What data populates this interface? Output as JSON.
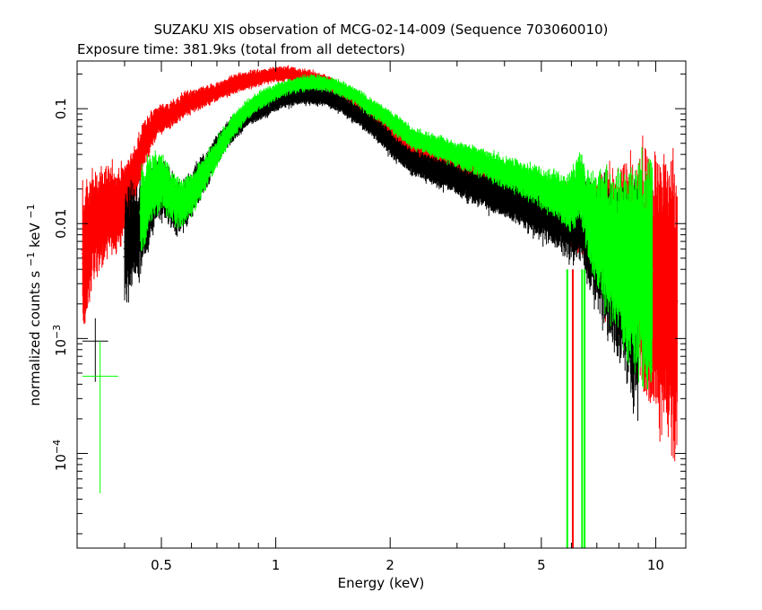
{
  "chart_data": {
    "type": "scatter",
    "title": "SUZAKU XIS observation of MCG-02-14-009 (Sequence 703060010)",
    "subtitle": "Exposure time: 381.9ks (total from all detectors)",
    "xlabel": "Energy (keV)",
    "ylabel_main": "normalized counts s",
    "ylabel_sup1": "−1",
    "ylabel_mid": " keV",
    "ylabel_sup2": "−1",
    "xscale": "log",
    "yscale": "log",
    "xlim": [
      0.3,
      12.0
    ],
    "ylim": [
      1.5e-05,
      0.26
    ],
    "x_ticks": [
      {
        "value": 0.5,
        "label": "0.5"
      },
      {
        "value": 1,
        "label": "1"
      },
      {
        "value": 2,
        "label": "2"
      },
      {
        "value": 5,
        "label": "5"
      },
      {
        "value": 10,
        "label": "10"
      }
    ],
    "x_minor_ticks": [
      0.3,
      0.4,
      0.6,
      0.7,
      0.8,
      0.9,
      3,
      4,
      6,
      7,
      8,
      9
    ],
    "y_ticks": [
      {
        "value": 0.1,
        "label": "0.1",
        "base": "",
        "exp": ""
      },
      {
        "value": 0.01,
        "label": "0.01",
        "base": "",
        "exp": ""
      },
      {
        "value": 0.001,
        "label": "",
        "base": "10",
        "exp": "−3"
      },
      {
        "value": 0.0001,
        "label": "",
        "base": "10",
        "exp": "−4"
      }
    ],
    "series": [
      {
        "color": "#ff0000",
        "points": [
          [
            0.31,
            0.0045,
            0.5
          ],
          [
            0.33,
            0.009,
            0.35
          ],
          [
            0.35,
            0.012,
            0.3
          ],
          [
            0.37,
            0.013,
            0.28
          ],
          [
            0.39,
            0.014,
            0.25
          ],
          [
            0.41,
            0.02,
            0.2
          ],
          [
            0.43,
            0.03,
            0.18
          ],
          [
            0.45,
            0.05,
            0.15
          ],
          [
            0.47,
            0.065,
            0.12
          ],
          [
            0.49,
            0.08,
            0.1
          ],
          [
            0.52,
            0.085,
            0.09
          ],
          [
            0.55,
            0.095,
            0.08
          ],
          [
            0.58,
            0.11,
            0.08
          ],
          [
            0.62,
            0.12,
            0.07
          ],
          [
            0.66,
            0.13,
            0.07
          ],
          [
            0.7,
            0.14,
            0.06
          ],
          [
            0.75,
            0.155,
            0.06
          ],
          [
            0.8,
            0.17,
            0.06
          ],
          [
            0.86,
            0.18,
            0.06
          ],
          [
            0.92,
            0.19,
            0.05
          ],
          [
            1.0,
            0.2,
            0.05
          ],
          [
            1.08,
            0.2,
            0.05
          ],
          [
            1.16,
            0.19,
            0.05
          ],
          [
            1.25,
            0.185,
            0.05
          ],
          [
            1.35,
            0.17,
            0.05
          ],
          [
            1.45,
            0.15,
            0.05
          ],
          [
            1.55,
            0.13,
            0.05
          ],
          [
            1.67,
            0.11,
            0.06
          ],
          [
            1.8,
            0.09,
            0.06
          ],
          [
            1.95,
            0.075,
            0.06
          ],
          [
            2.1,
            0.055,
            0.07
          ],
          [
            2.3,
            0.045,
            0.07
          ],
          [
            2.5,
            0.042,
            0.07
          ],
          [
            2.75,
            0.038,
            0.08
          ],
          [
            3.0,
            0.034,
            0.08
          ],
          [
            3.3,
            0.03,
            0.09
          ],
          [
            3.6,
            0.027,
            0.09
          ],
          [
            4.0,
            0.024,
            0.1
          ],
          [
            4.4,
            0.021,
            0.11
          ],
          [
            4.8,
            0.019,
            0.12
          ],
          [
            5.2,
            0.016,
            0.14
          ],
          [
            5.6,
            0.014,
            0.16
          ],
          [
            6.0,
            0.012,
            0.2
          ],
          [
            6.3,
            0.011,
            0.25
          ],
          [
            6.7,
            0.01,
            0.3
          ],
          [
            7.2,
            0.008,
            0.4
          ],
          [
            7.8,
            0.006,
            0.5
          ],
          [
            8.4,
            0.005,
            0.6
          ],
          [
            9.0,
            0.004,
            0.7
          ],
          [
            9.8,
            0.003,
            0.8
          ],
          [
            10.6,
            0.0025,
            0.9
          ],
          [
            11.4,
            0.002,
            0.95
          ]
        ]
      },
      {
        "color": "#000000",
        "points": [
          [
            0.4,
            0.0062,
            0.35
          ],
          [
            0.43,
            0.008,
            0.3
          ],
          [
            0.46,
            0.012,
            0.25
          ],
          [
            0.49,
            0.022,
            0.2
          ],
          [
            0.52,
            0.018,
            0.18
          ],
          [
            0.55,
            0.014,
            0.18
          ],
          [
            0.58,
            0.015,
            0.16
          ],
          [
            0.62,
            0.022,
            0.14
          ],
          [
            0.66,
            0.03,
            0.12
          ],
          [
            0.7,
            0.045,
            0.1
          ],
          [
            0.75,
            0.06,
            0.09
          ],
          [
            0.8,
            0.075,
            0.08
          ],
          [
            0.86,
            0.09,
            0.07
          ],
          [
            0.92,
            0.1,
            0.07
          ],
          [
            1.0,
            0.115,
            0.06
          ],
          [
            1.08,
            0.125,
            0.06
          ],
          [
            1.16,
            0.13,
            0.06
          ],
          [
            1.25,
            0.13,
            0.06
          ],
          [
            1.35,
            0.125,
            0.06
          ],
          [
            1.45,
            0.115,
            0.06
          ],
          [
            1.55,
            0.1,
            0.07
          ],
          [
            1.67,
            0.085,
            0.07
          ],
          [
            1.8,
            0.07,
            0.07
          ],
          [
            1.95,
            0.055,
            0.08
          ],
          [
            2.1,
            0.042,
            0.08
          ],
          [
            2.3,
            0.034,
            0.09
          ],
          [
            2.5,
            0.03,
            0.09
          ],
          [
            2.75,
            0.027,
            0.1
          ],
          [
            3.0,
            0.024,
            0.1
          ],
          [
            3.3,
            0.021,
            0.11
          ],
          [
            3.6,
            0.019,
            0.12
          ],
          [
            4.0,
            0.017,
            0.13
          ],
          [
            4.4,
            0.015,
            0.14
          ],
          [
            4.8,
            0.013,
            0.16
          ],
          [
            5.2,
            0.012,
            0.18
          ],
          [
            5.6,
            0.011,
            0.2
          ],
          [
            6.0,
            0.01,
            0.25
          ],
          [
            6.3,
            0.012,
            0.3
          ],
          [
            6.7,
            0.008,
            0.35
          ],
          [
            7.2,
            0.006,
            0.45
          ],
          [
            7.8,
            0.004,
            0.55
          ],
          [
            8.4,
            0.003,
            0.65
          ],
          [
            9.0,
            0.0025,
            0.75
          ]
        ]
      },
      {
        "color": "#00ff00",
        "points": [
          [
            0.44,
            0.012,
            0.3
          ],
          [
            0.47,
            0.02,
            0.22
          ],
          [
            0.5,
            0.025,
            0.18
          ],
          [
            0.53,
            0.018,
            0.16
          ],
          [
            0.56,
            0.015,
            0.16
          ],
          [
            0.6,
            0.018,
            0.14
          ],
          [
            0.64,
            0.025,
            0.12
          ],
          [
            0.68,
            0.035,
            0.1
          ],
          [
            0.72,
            0.05,
            0.09
          ],
          [
            0.77,
            0.07,
            0.08
          ],
          [
            0.82,
            0.09,
            0.07
          ],
          [
            0.88,
            0.11,
            0.06
          ],
          [
            0.94,
            0.125,
            0.06
          ],
          [
            1.0,
            0.14,
            0.05
          ],
          [
            1.08,
            0.155,
            0.05
          ],
          [
            1.16,
            0.165,
            0.05
          ],
          [
            1.25,
            0.17,
            0.05
          ],
          [
            1.35,
            0.165,
            0.05
          ],
          [
            1.45,
            0.155,
            0.05
          ],
          [
            1.55,
            0.14,
            0.05
          ],
          [
            1.67,
            0.12,
            0.06
          ],
          [
            1.8,
            0.1,
            0.06
          ],
          [
            1.95,
            0.085,
            0.06
          ],
          [
            2.1,
            0.07,
            0.07
          ],
          [
            2.3,
            0.055,
            0.07
          ],
          [
            2.5,
            0.05,
            0.07
          ],
          [
            2.75,
            0.045,
            0.08
          ],
          [
            3.0,
            0.04,
            0.08
          ],
          [
            3.3,
            0.036,
            0.09
          ],
          [
            3.6,
            0.032,
            0.09
          ],
          [
            4.0,
            0.028,
            0.1
          ],
          [
            4.4,
            0.025,
            0.11
          ],
          [
            4.8,
            0.022,
            0.12
          ],
          [
            5.2,
            0.019,
            0.14
          ],
          [
            5.6,
            0.017,
            0.16
          ],
          [
            6.0,
            0.015,
            0.2
          ],
          [
            6.3,
            0.022,
            0.22
          ],
          [
            6.7,
            0.011,
            0.3
          ],
          [
            7.2,
            0.008,
            0.4
          ],
          [
            7.8,
            0.006,
            0.5
          ],
          [
            8.4,
            0.005,
            0.6
          ],
          [
            9.0,
            0.004,
            0.7
          ],
          [
            9.8,
            0.003,
            0.8
          ]
        ]
      }
    ],
    "legend_markers": [
      {
        "color": "#000000",
        "x": 0.335,
        "y": 0.00095,
        "x_err": [
          0.31,
          0.362
        ],
        "y_err": [
          0.00042,
          0.0015
        ]
      },
      {
        "color": "#00ff00",
        "x": 0.345,
        "y": 0.00047,
        "x_err": [
          0.31,
          0.385
        ],
        "y_err": [
          4.5e-05,
          0.00095
        ]
      }
    ],
    "dips": [
      {
        "x": 5.85,
        "color": "#00ff00"
      },
      {
        "x": 6.05,
        "color": "#ff0000"
      },
      {
        "x": 6.4,
        "color": "#00ff00"
      },
      {
        "x": 6.5,
        "color": "#00ff00"
      }
    ]
  }
}
